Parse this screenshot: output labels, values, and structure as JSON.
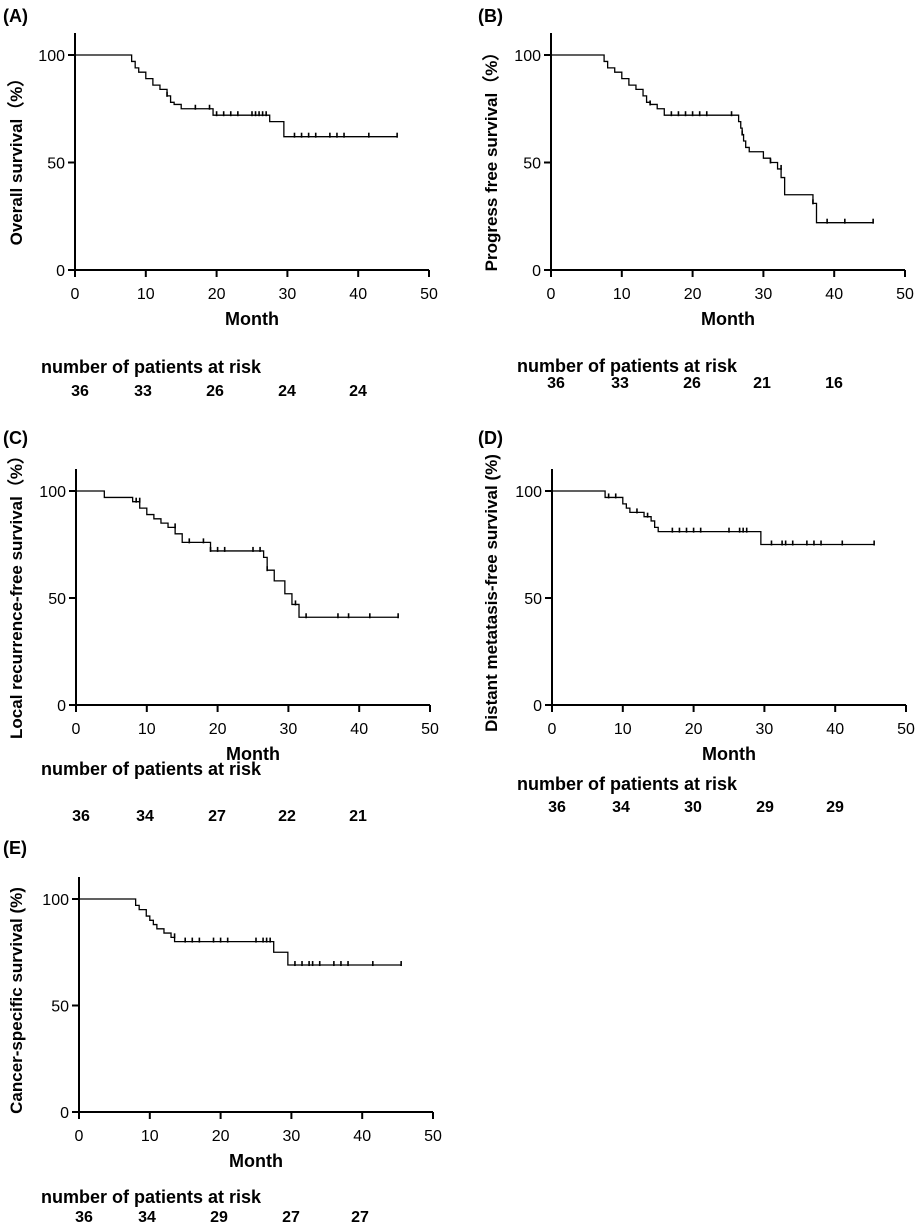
{
  "chart_data": [
    {
      "type": "line",
      "panel_label": "(A)",
      "ylabel": "Overall survival（%）",
      "xlabel": "Month",
      "xlim": [
        0,
        50
      ],
      "ylim": [
        0,
        100
      ],
      "xticks": [
        0,
        10,
        20,
        30,
        40,
        50
      ],
      "yticks": [
        0,
        50,
        100
      ],
      "step_x": [
        0,
        8,
        8.5,
        9,
        10,
        11,
        12,
        13,
        13.5,
        14,
        15,
        19.5,
        27.5,
        29.5,
        45.5
      ],
      "step_y": [
        100,
        97,
        94,
        92,
        89,
        86,
        84,
        81,
        78,
        77,
        75,
        72,
        69,
        62,
        62
      ],
      "censored_x": [
        13,
        17,
        19,
        20,
        21,
        22,
        23,
        25,
        25.5,
        26,
        26.5,
        27,
        31,
        32,
        33,
        34,
        36,
        37,
        38,
        41.5,
        45.5
      ],
      "censored_y": [
        81,
        75,
        75,
        72,
        72,
        72,
        72,
        72,
        72,
        72,
        72,
        72,
        62,
        62,
        62,
        62,
        62,
        62,
        62,
        62,
        62
      ],
      "risk_title": "number of patients at risk",
      "risk_counts": [
        "36",
        "33",
        "26",
        "24",
        "24"
      ]
    },
    {
      "type": "line",
      "panel_label": "(B)",
      "ylabel": "Progress free survival（%）",
      "xlabel": "Month",
      "xlim": [
        0,
        50
      ],
      "ylim": [
        0,
        100
      ],
      "xticks": [
        0,
        10,
        20,
        30,
        40,
        50
      ],
      "yticks": [
        0,
        50,
        100
      ],
      "step_x": [
        0,
        7.5,
        8,
        9,
        10,
        11,
        12,
        13,
        13.5,
        14,
        15,
        16,
        26.5,
        26.8,
        27,
        27.2,
        27.5,
        28,
        30,
        31,
        32,
        32.5,
        33,
        37,
        37.5,
        45.5
      ],
      "step_y": [
        100,
        97,
        94,
        92,
        89,
        86,
        84,
        81,
        78,
        77,
        75,
        72,
        69,
        66,
        63,
        60,
        57,
        55,
        52,
        50,
        47,
        43,
        35,
        31,
        22,
        22
      ],
      "censored_x": [
        14,
        17,
        18,
        19,
        20,
        21,
        22,
        25.5,
        27,
        31,
        32.5,
        37,
        39,
        41.5,
        45.5
      ],
      "censored_y": [
        77,
        72,
        72,
        72,
        72,
        72,
        72,
        72,
        63,
        50,
        47,
        31,
        22,
        22,
        22
      ],
      "risk_title": "number of patients at risk",
      "risk_counts": [
        "36",
        "33",
        "26",
        "21",
        "16"
      ]
    },
    {
      "type": "line",
      "panel_label": "(C)",
      "ylabel": "Local recurrence-free survival（%）",
      "xlabel": "Month",
      "xlim": [
        0,
        50
      ],
      "ylim": [
        0,
        100
      ],
      "xticks": [
        0,
        10,
        20,
        30,
        40,
        50
      ],
      "yticks": [
        0,
        50,
        100
      ],
      "step_x": [
        0,
        4,
        8,
        9,
        10,
        11,
        12,
        13,
        14,
        15,
        19,
        26.5,
        27,
        28,
        29.5,
        30.5,
        31.5,
        45.5
      ],
      "step_y": [
        100,
        97,
        95,
        92,
        89,
        87,
        85,
        83,
        80,
        76,
        72,
        69,
        63,
        58,
        52,
        47,
        41,
        41
      ],
      "censored_x": [
        8.5,
        9,
        14,
        16,
        18,
        19,
        20,
        21,
        25,
        26,
        27,
        31,
        32.5,
        37,
        38.5,
        41.5,
        45.5
      ],
      "censored_y": [
        95,
        95,
        83,
        76,
        76,
        72,
        72,
        72,
        72,
        72,
        63,
        47,
        41,
        41,
        41,
        41,
        41
      ],
      "risk_title": "number of patients at risk",
      "risk_counts": [
        "36",
        "34",
        "27",
        "22",
        "21"
      ]
    },
    {
      "type": "line",
      "panel_label": "(D)",
      "ylabel": "Distant metatasis-free survival (%)",
      "xlabel": "Month",
      "xlim": [
        0,
        50
      ],
      "ylim": [
        0,
        100
      ],
      "xticks": [
        0,
        10,
        20,
        30,
        40,
        50
      ],
      "yticks": [
        0,
        50,
        100
      ],
      "step_x": [
        0,
        7.5,
        10,
        10.5,
        11,
        13,
        14,
        14.5,
        15,
        29.5,
        45.5
      ],
      "step_y": [
        100,
        97,
        94,
        92,
        90,
        88,
        86,
        83,
        81,
        75,
        75
      ],
      "censored_x": [
        8,
        9,
        12,
        13.5,
        17,
        18,
        19,
        20,
        21,
        25,
        26.5,
        27,
        27.5,
        31,
        32.5,
        33,
        34,
        36,
        37,
        38,
        41,
        45.5
      ],
      "censored_y": [
        97,
        97,
        90,
        88,
        81,
        81,
        81,
        81,
        81,
        81,
        81,
        81,
        81,
        75,
        75,
        75,
        75,
        75,
        75,
        75,
        75,
        75
      ],
      "risk_title": "number of patients at risk",
      "risk_counts": [
        "36",
        "34",
        "30",
        "29",
        "29"
      ]
    },
    {
      "type": "line",
      "panel_label": "(E)",
      "ylabel": "Cancer-specific survival (%)",
      "xlabel": "Month",
      "xlim": [
        0,
        50
      ],
      "ylim": [
        0,
        100
      ],
      "xticks": [
        0,
        10,
        20,
        30,
        40,
        50
      ],
      "yticks": [
        0,
        50,
        100
      ],
      "step_x": [
        0,
        8,
        8.5,
        9.5,
        10,
        10.5,
        11,
        12,
        13,
        13.5,
        14,
        27.5,
        29.5,
        45.5
      ],
      "step_y": [
        100,
        97,
        95,
        92,
        90,
        88,
        86,
        84,
        82,
        80,
        80,
        75,
        69,
        69
      ],
      "censored_x": [
        13.5,
        15,
        16,
        17,
        19,
        20,
        21,
        25,
        26,
        26.5,
        27,
        30.5,
        31.5,
        32.5,
        33,
        34,
        36,
        37,
        38,
        41.5,
        45.5
      ],
      "censored_y": [
        82,
        80,
        80,
        80,
        80,
        80,
        80,
        80,
        80,
        80,
        80,
        69,
        69,
        69,
        69,
        69,
        69,
        69,
        69,
        69,
        69
      ],
      "risk_title": "number of patients at risk",
      "risk_counts": [
        "36",
        "34",
        "29",
        "27",
        "27"
      ]
    }
  ]
}
